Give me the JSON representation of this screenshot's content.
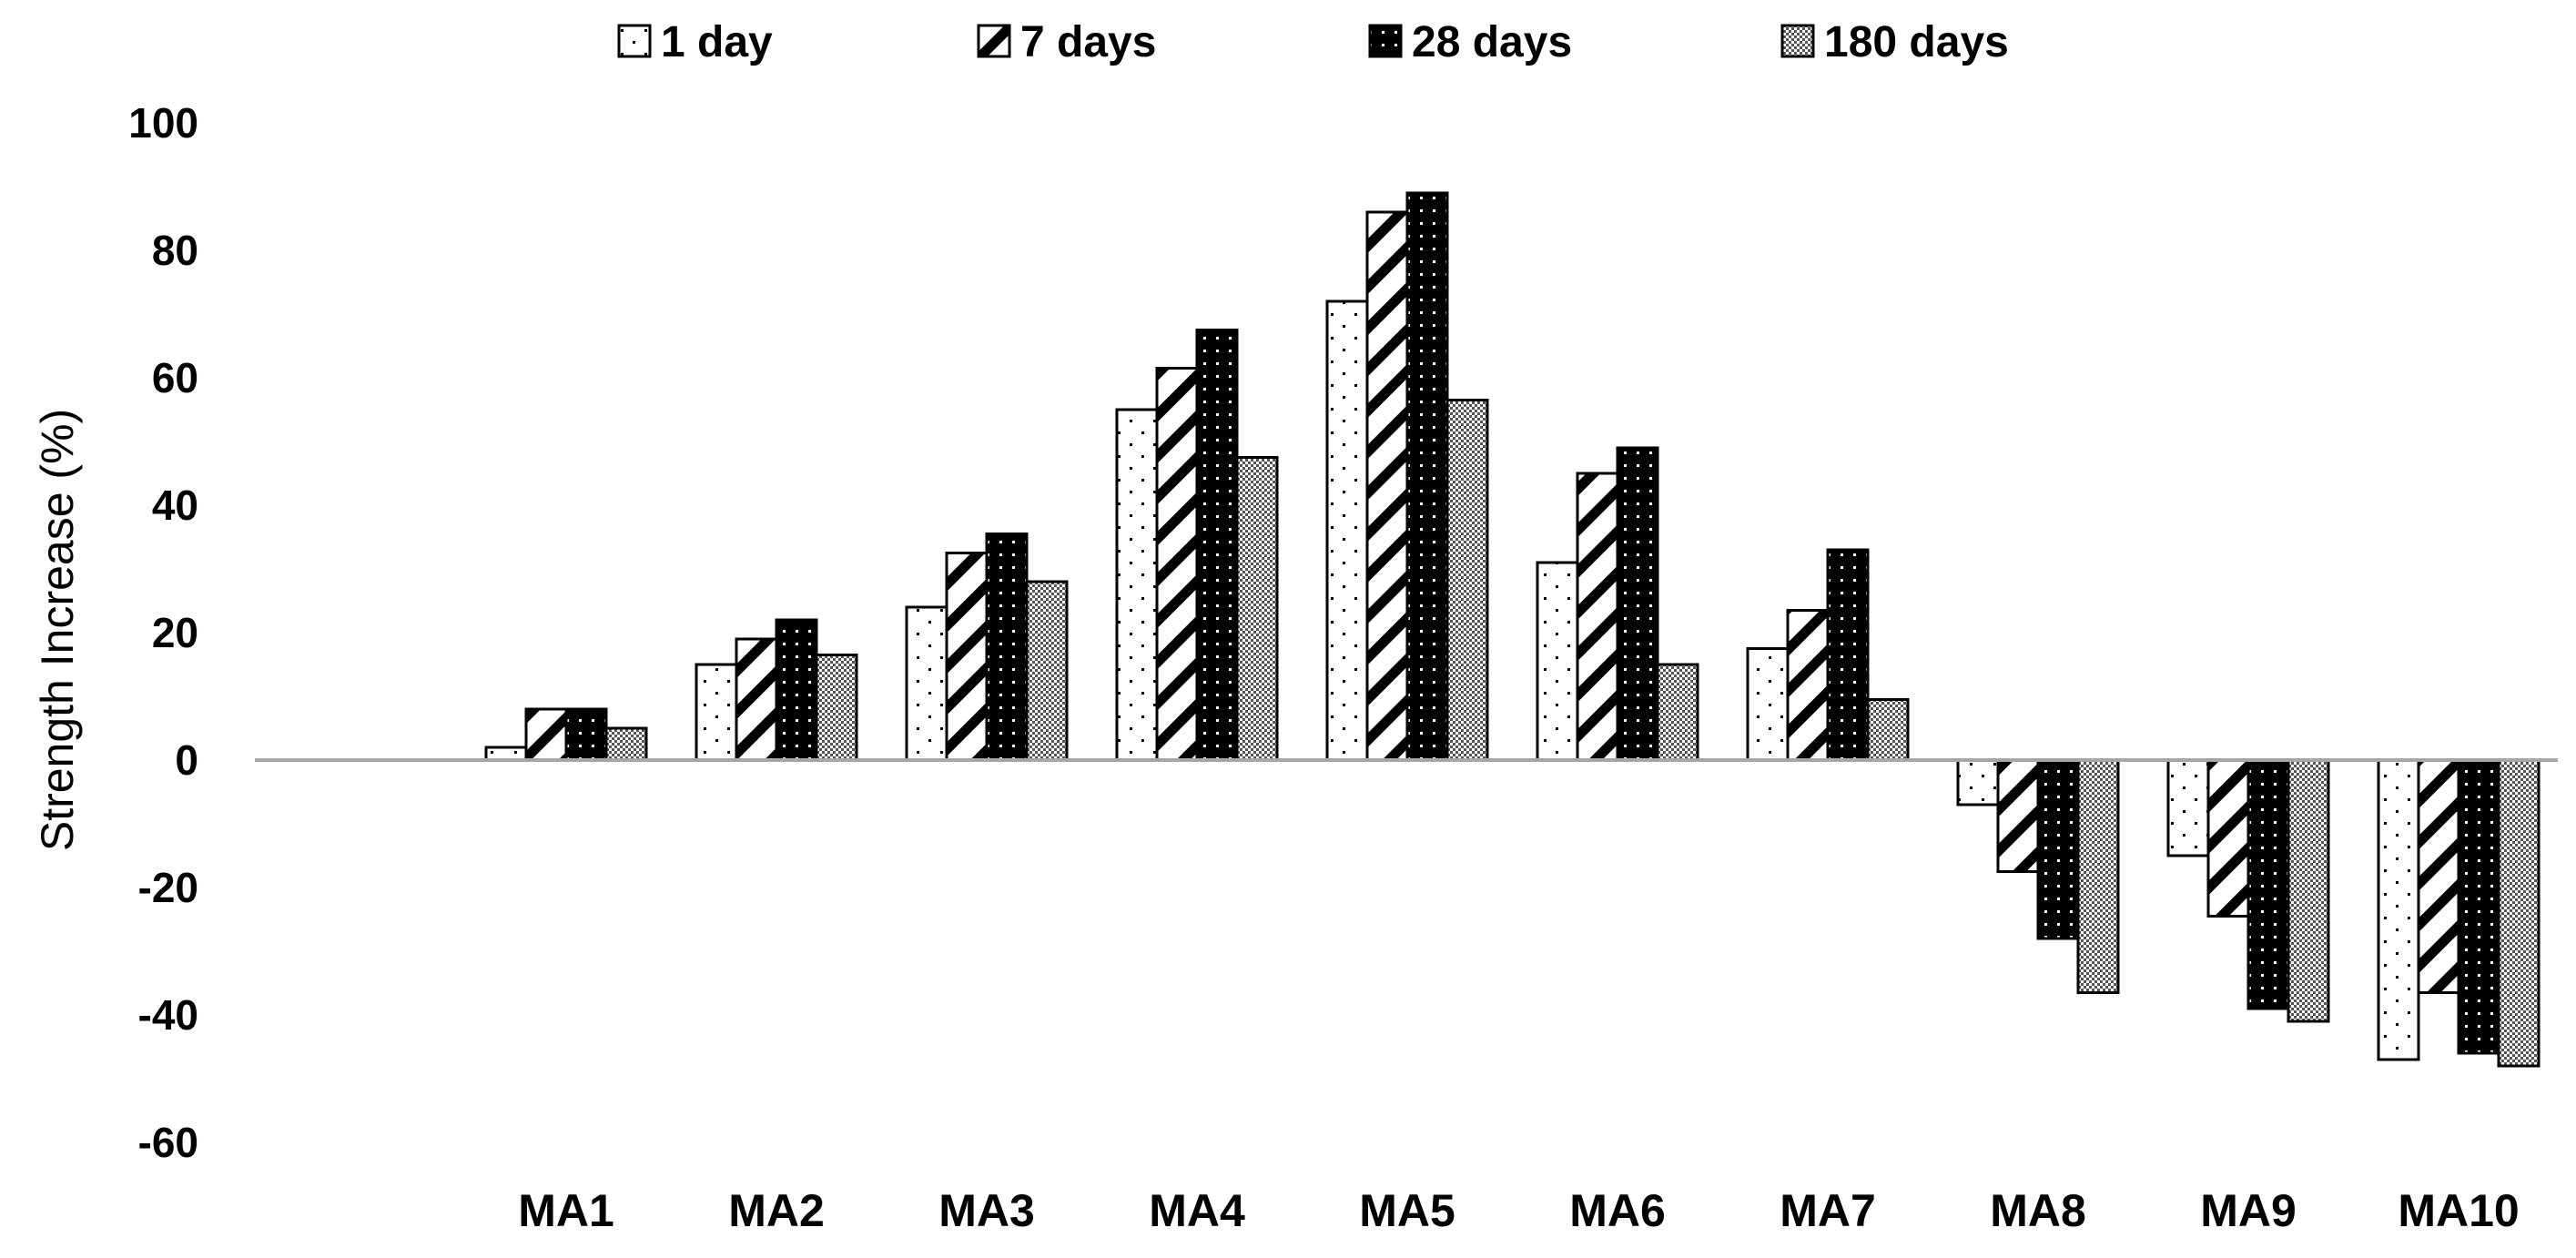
{
  "chart_data": {
    "type": "bar",
    "title": "",
    "xlabel": "",
    "ylabel": "Strength Increase (%)",
    "ylim": [
      -60,
      100
    ],
    "yticks": [
      100,
      80,
      60,
      40,
      20,
      0,
      -20,
      -40,
      -60
    ],
    "ytick_labels": [
      "100",
      "80",
      "60",
      "40",
      "20",
      "0",
      "-20",
      "-40",
      "-60"
    ],
    "grid": false,
    "legend_position": "top",
    "categories": [
      "MA1",
      "MA2",
      "MA3",
      "MA4",
      "MA5",
      "MA6",
      "MA7",
      "MA8",
      "MA9",
      "MA10"
    ],
    "series": [
      {
        "name": "1 day",
        "pattern": "dots",
        "values": [
          2,
          15,
          24,
          55,
          72,
          31,
          17.5,
          -7,
          -15,
          -47
        ]
      },
      {
        "name": "7 days",
        "pattern": "diagonal",
        "values": [
          8,
          19,
          32.5,
          61.5,
          86,
          45,
          23.5,
          -17.5,
          -24.5,
          -36.5
        ]
      },
      {
        "name": "28 days",
        "pattern": "dark",
        "values": [
          8,
          22,
          35.5,
          67.5,
          89,
          49,
          33,
          -28,
          -39,
          -46
        ]
      },
      {
        "name": "180 days",
        "pattern": "checker",
        "values": [
          5,
          16.5,
          28,
          47.5,
          56.5,
          15,
          9.5,
          -36.5,
          -41,
          -48
        ]
      }
    ]
  }
}
